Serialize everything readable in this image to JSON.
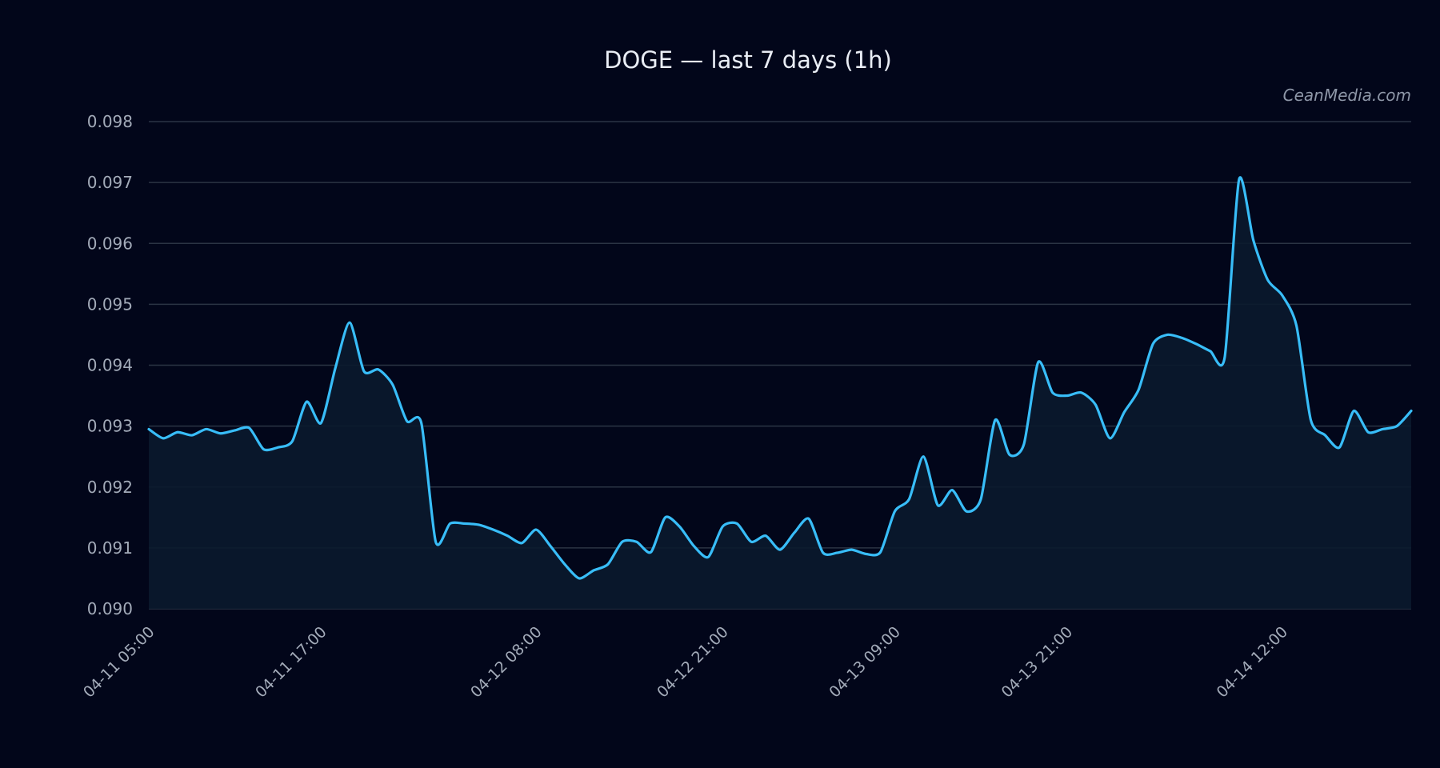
{
  "chart_data": {
    "type": "line",
    "title": "DOGE — last 7 days (1h)",
    "watermark": "CeanMedia.com",
    "xlabel": "",
    "ylabel": "",
    "ylim": [
      0.09,
      0.098
    ],
    "grid": true,
    "y_ticks": [
      "0.090",
      "0.091",
      "0.092",
      "0.093",
      "0.094",
      "0.095",
      "0.096",
      "0.097",
      "0.098"
    ],
    "x_ticks": [
      {
        "label": "04-11 05:00",
        "index": 0
      },
      {
        "label": "04-11 17:00",
        "index": 12
      },
      {
        "label": "04-12 08:00",
        "index": 27
      },
      {
        "label": "04-12 21:00",
        "index": 40
      },
      {
        "label": "04-13 09:00",
        "index": 52
      },
      {
        "label": "04-13 21:00",
        "index": 64
      },
      {
        "label": "04-14 12:00",
        "index": 79
      }
    ],
    "series": [
      {
        "color": "#38bdf8",
        "start": "04-11 05:00",
        "values": [
          0.09295,
          0.0928,
          0.0929,
          0.09285,
          0.09295,
          0.09288,
          0.09293,
          0.09297,
          0.09262,
          0.09265,
          0.09275,
          0.0934,
          0.09305,
          0.09395,
          0.0947,
          0.0939,
          0.09393,
          0.09368,
          0.09308,
          0.09305,
          0.0911,
          0.0914,
          0.0914,
          0.09138,
          0.0913,
          0.0912,
          0.09108,
          0.0913,
          0.09103,
          0.09073,
          0.0905,
          0.09063,
          0.09073,
          0.0911,
          0.0911,
          0.09093,
          0.0915,
          0.09135,
          0.09103,
          0.09085,
          0.09135,
          0.0914,
          0.0911,
          0.0912,
          0.09097,
          0.09125,
          0.09148,
          0.09092,
          0.09092,
          0.09097,
          0.0909,
          0.09093,
          0.0916,
          0.0918,
          0.0925,
          0.0917,
          0.09195,
          0.0916,
          0.0918,
          0.0931,
          0.09253,
          0.0927,
          0.09405,
          0.09355,
          0.0935,
          0.09355,
          0.09335,
          0.0928,
          0.09323,
          0.0936,
          0.09435,
          0.0945,
          0.09445,
          0.09435,
          0.09423,
          0.09413,
          0.09705,
          0.09605,
          0.0954,
          0.09515,
          0.09465,
          0.0931,
          0.09285,
          0.09265,
          0.09325,
          0.0929,
          0.09295,
          0.093,
          0.09325
        ]
      }
    ]
  }
}
